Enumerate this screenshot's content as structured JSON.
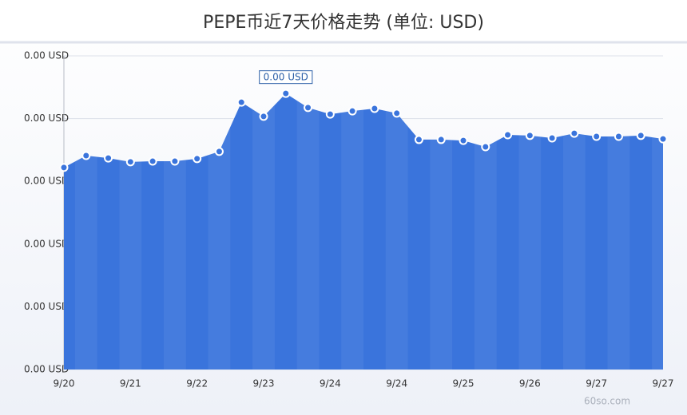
{
  "chart_data": {
    "type": "area",
    "title": "PEPE币近7天价格走势 (单位: USD)",
    "categories": [
      "9/20",
      null,
      null,
      "9/21",
      null,
      null,
      "9/22",
      null,
      null,
      "9/23",
      null,
      null,
      "9/24",
      null,
      null,
      "9/24",
      null,
      null,
      "9/25",
      null,
      null,
      "9/26",
      null,
      null,
      "9/27",
      null,
      null,
      "9/27"
    ],
    "values": [
      6.44e-06,
      6.82e-06,
      6.74e-06,
      6.62e-06,
      6.64e-06,
      6.64e-06,
      6.72e-06,
      6.95e-06,
      8.52e-06,
      8.07e-06,
      8.8e-06,
      8.35e-06,
      8.14e-06,
      8.24e-06,
      8.32e-06,
      8.17e-06,
      7.33e-06,
      7.33e-06,
      7.3e-06,
      7.1e-06,
      7.48e-06,
      7.46e-06,
      7.38e-06,
      7.53e-06,
      7.43e-06,
      7.43e-06,
      7.46e-06,
      7.35e-06
    ],
    "value_labels": [
      null,
      null,
      null,
      null,
      null,
      null,
      null,
      null,
      null,
      null,
      "0.00 USD",
      null,
      null,
      null,
      null,
      null,
      null,
      null,
      null,
      null,
      null,
      null,
      null,
      null,
      null,
      null,
      null,
      null
    ],
    "color": "#3a74dc",
    "ylim": [
      0,
      1e-05
    ],
    "yticks": [
      {
        "value": 0,
        "label": "0.00 USD"
      },
      {
        "value": 2e-06,
        "label": "0.00 USD"
      },
      {
        "value": 4e-06,
        "label": "0.00 USD"
      },
      {
        "value": 6e-06,
        "label": "0.00 USD"
      },
      {
        "value": 8e-06,
        "label": "0.00 USD"
      },
      {
        "value": 1e-05,
        "label": "0.00 USD"
      }
    ],
    "grid": true,
    "watermark": "60so.com"
  }
}
